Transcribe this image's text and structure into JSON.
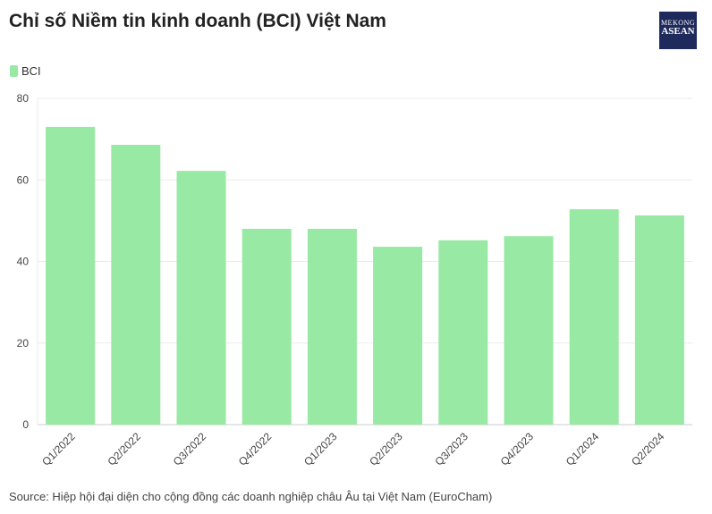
{
  "header": {
    "title": "Chỉ số Niềm tin kinh doanh (BCI) Việt Nam",
    "logo_text": [
      "MEKONG",
      "ASEAN",
      "MEKONG ASEAN"
    ]
  },
  "source": "Source: Hiệp hội đại diện cho cộng đồng các doanh nghiệp châu Âu tại Việt Nam (EuroCham)",
  "chart_data": {
    "type": "bar",
    "title": "Chỉ số Niềm tin kinh doanh (BCI) Việt Nam",
    "categories": [
      "Q1/2022",
      "Q2/2022",
      "Q3/2022",
      "Q4/2022",
      "Q1/2023",
      "Q2/2023",
      "Q3/2023",
      "Q4/2023",
      "Q1/2024",
      "Q2/2024"
    ],
    "series": [
      {
        "name": "BCI",
        "color": "#98e9a3",
        "values": [
          73,
          68.6,
          62.2,
          48,
          48,
          43.6,
          45.2,
          46.2,
          52.8,
          51.3
        ]
      }
    ],
    "xlabel": "",
    "ylabel": "",
    "ylim": [
      0,
      80
    ],
    "yticks": [
      0,
      20,
      40,
      60,
      80
    ],
    "grid": true,
    "legend": "top-left"
  }
}
